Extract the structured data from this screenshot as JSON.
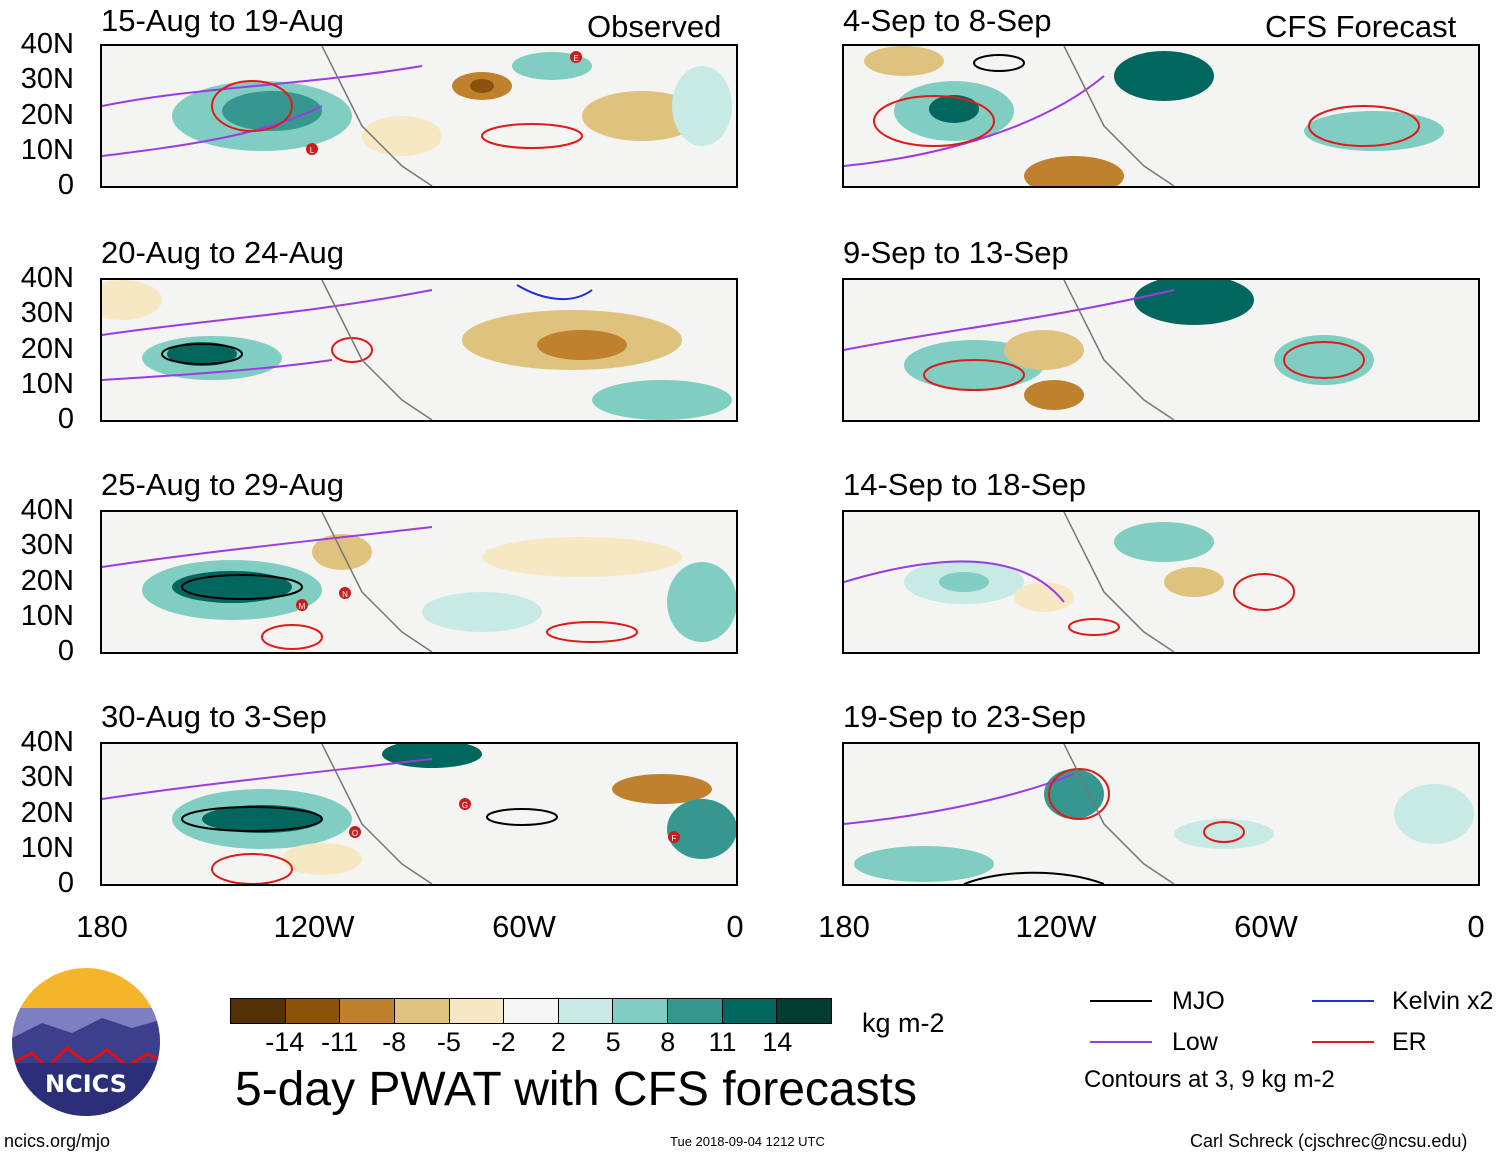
{
  "panels": [
    {
      "title": "15-Aug to 19-Aug",
      "label": "Observed"
    },
    {
      "title": "20-Aug to 24-Aug",
      "label": ""
    },
    {
      "title": "25-Aug to 29-Aug",
      "label": ""
    },
    {
      "title": "30-Aug to 3-Sep",
      "label": ""
    },
    {
      "title": "4-Sep to 8-Sep",
      "label": "CFS Forecast"
    },
    {
      "title": "9-Sep to 13-Sep",
      "label": ""
    },
    {
      "title": "14-Sep to 18-Sep",
      "label": ""
    },
    {
      "title": "19-Sep to 23-Sep",
      "label": ""
    }
  ],
  "lat_ticks": [
    "40N",
    "30N",
    "20N",
    "10N",
    "0"
  ],
  "lon_ticks": [
    "180",
    "120W",
    "60W",
    "0"
  ],
  "colorbar": {
    "colors": [
      "#543005",
      "#8c510a",
      "#bf812d",
      "#dfc27d",
      "#f6e8c3",
      "#f5f5f5",
      "#c7eae5",
      "#80cdc1",
      "#35978f",
      "#01665e",
      "#003c30"
    ],
    "labels": [
      "-14",
      "-11",
      "-8",
      "-5",
      "-2",
      "2",
      "5",
      "8",
      "11",
      "14"
    ],
    "units": "kg m-2"
  },
  "title": "5-day PWAT with CFS forecasts",
  "legend": {
    "items": [
      {
        "name": "MJO",
        "color": "#000000"
      },
      {
        "name": "Kelvin x2",
        "color": "#1f2fd0"
      },
      {
        "name": "Low",
        "color": "#9b3be0"
      },
      {
        "name": "ER",
        "color": "#e01a1a"
      }
    ],
    "note": "Contours at 3, 9 kg m-2"
  },
  "logo_text": "NCICS",
  "footer": {
    "left": "ncics.org/mjo",
    "center": "Tue 2018-09-04 1212 UTC",
    "right": "Carl Schreck (cjschrec@ncsu.edu)"
  },
  "storm_markers": [
    "L",
    "E",
    "M",
    "N",
    "G",
    "O",
    "F"
  ]
}
